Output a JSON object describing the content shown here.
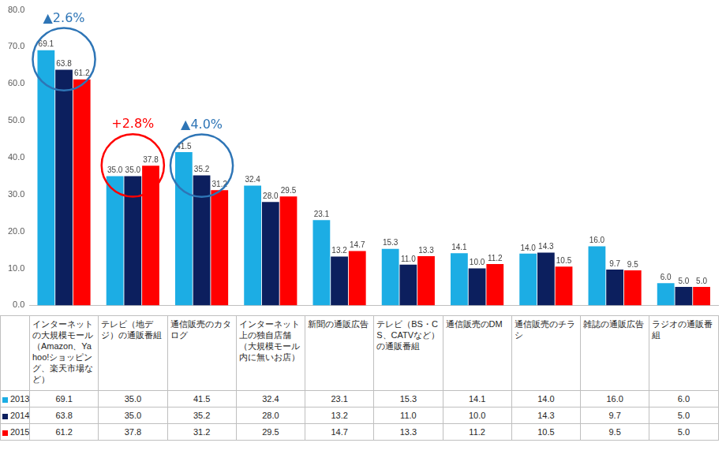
{
  "chart_data": {
    "type": "bar",
    "categories": [
      "インターネットの大規模モール（Amazon、Yahoo!ショッピング、楽天市場など）",
      "テレビ（地デジ）の通販番組",
      "通信販売のカタログ",
      "インターネット上の独自店舗（大規模モール内に無いお店）",
      "新聞の通販広告",
      "テレビ（BS・CS、CATVなど）の通販番組",
      "通信販売のDM",
      "通信販売のチラシ",
      "雑誌の通販広告",
      "ラジオの通販番組"
    ],
    "series": [
      {
        "name": "2013",
        "color": "#1cade4",
        "values": [
          69.1,
          35.0,
          41.5,
          32.4,
          23.1,
          15.3,
          14.1,
          14.0,
          16.0,
          6.0
        ],
        "value_labels": [
          "69.1",
          "35.0",
          "41.5",
          "32.4",
          "23.1",
          "15.3",
          "14.1",
          "14.0",
          "16.0",
          "6.0"
        ]
      },
      {
        "name": "2014",
        "color": "#0c1f5e",
        "values": [
          63.8,
          35.0,
          35.2,
          28.0,
          13.2,
          11.0,
          10.0,
          14.3,
          9.7,
          5.0
        ],
        "value_labels": [
          "63.8",
          "35.0",
          "35.2",
          "28.0",
          "13.2",
          "11.0",
          "10.0",
          "14.3",
          "9.7",
          "5.0"
        ]
      },
      {
        "name": "2015",
        "color": "#ff0000",
        "values": [
          61.2,
          37.8,
          31.2,
          29.5,
          14.7,
          13.3,
          11.2,
          10.5,
          9.5,
          5.0
        ],
        "value_labels": [
          "61.2",
          "37.8",
          "31.2",
          "29.5",
          "14.7",
          "13.3",
          "11.2",
          "10.5",
          "9.5",
          "5.0"
        ]
      }
    ],
    "ylim": [
      0,
      80
    ],
    "yticks": [
      {
        "value": 0,
        "label": "0.0"
      },
      {
        "value": 10,
        "label": "10.0"
      },
      {
        "value": 20,
        "label": "20.0"
      },
      {
        "value": 30,
        "label": "30.0"
      },
      {
        "value": 40,
        "label": "40.0"
      },
      {
        "value": 50,
        "label": "50.0"
      },
      {
        "value": 60,
        "label": "60.0"
      },
      {
        "value": 70,
        "label": "70.0"
      },
      {
        "value": 80,
        "label": "80.0"
      }
    ],
    "grid": false,
    "data_labels": true,
    "annotations": [
      {
        "text": "▲2.6%",
        "category": "インターネットの大規模モール（Amazon、Yahoo!ショッピング、楽天市場など）",
        "color": "#2e75b6"
      },
      {
        "text": "+2.8%",
        "category": "テレビ（地デジ）の通販番組",
        "color": "#ff0000"
      },
      {
        "text": "▲4.0%",
        "category": "通信販売のカタログ",
        "color": "#2e75b6"
      }
    ]
  }
}
